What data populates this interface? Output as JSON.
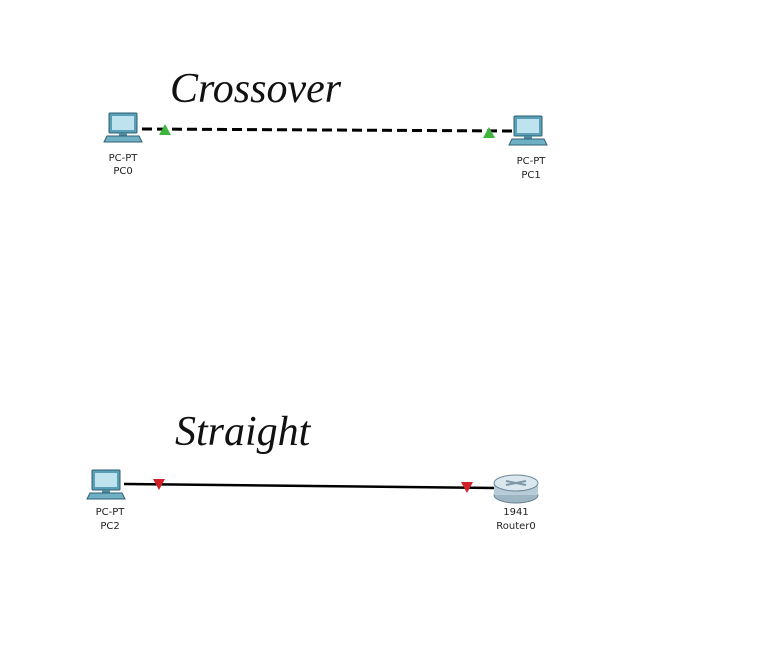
{
  "nodes": [
    {
      "model": "PC-PT",
      "name": "PC0"
    },
    {
      "model": "PC-PT",
      "name": "PC1"
    },
    {
      "model": "PC-PT",
      "name": "PC2"
    },
    {
      "model": "1941",
      "name": "Router0"
    }
  ],
  "annotations": [
    "Crossover",
    "Straight"
  ]
}
